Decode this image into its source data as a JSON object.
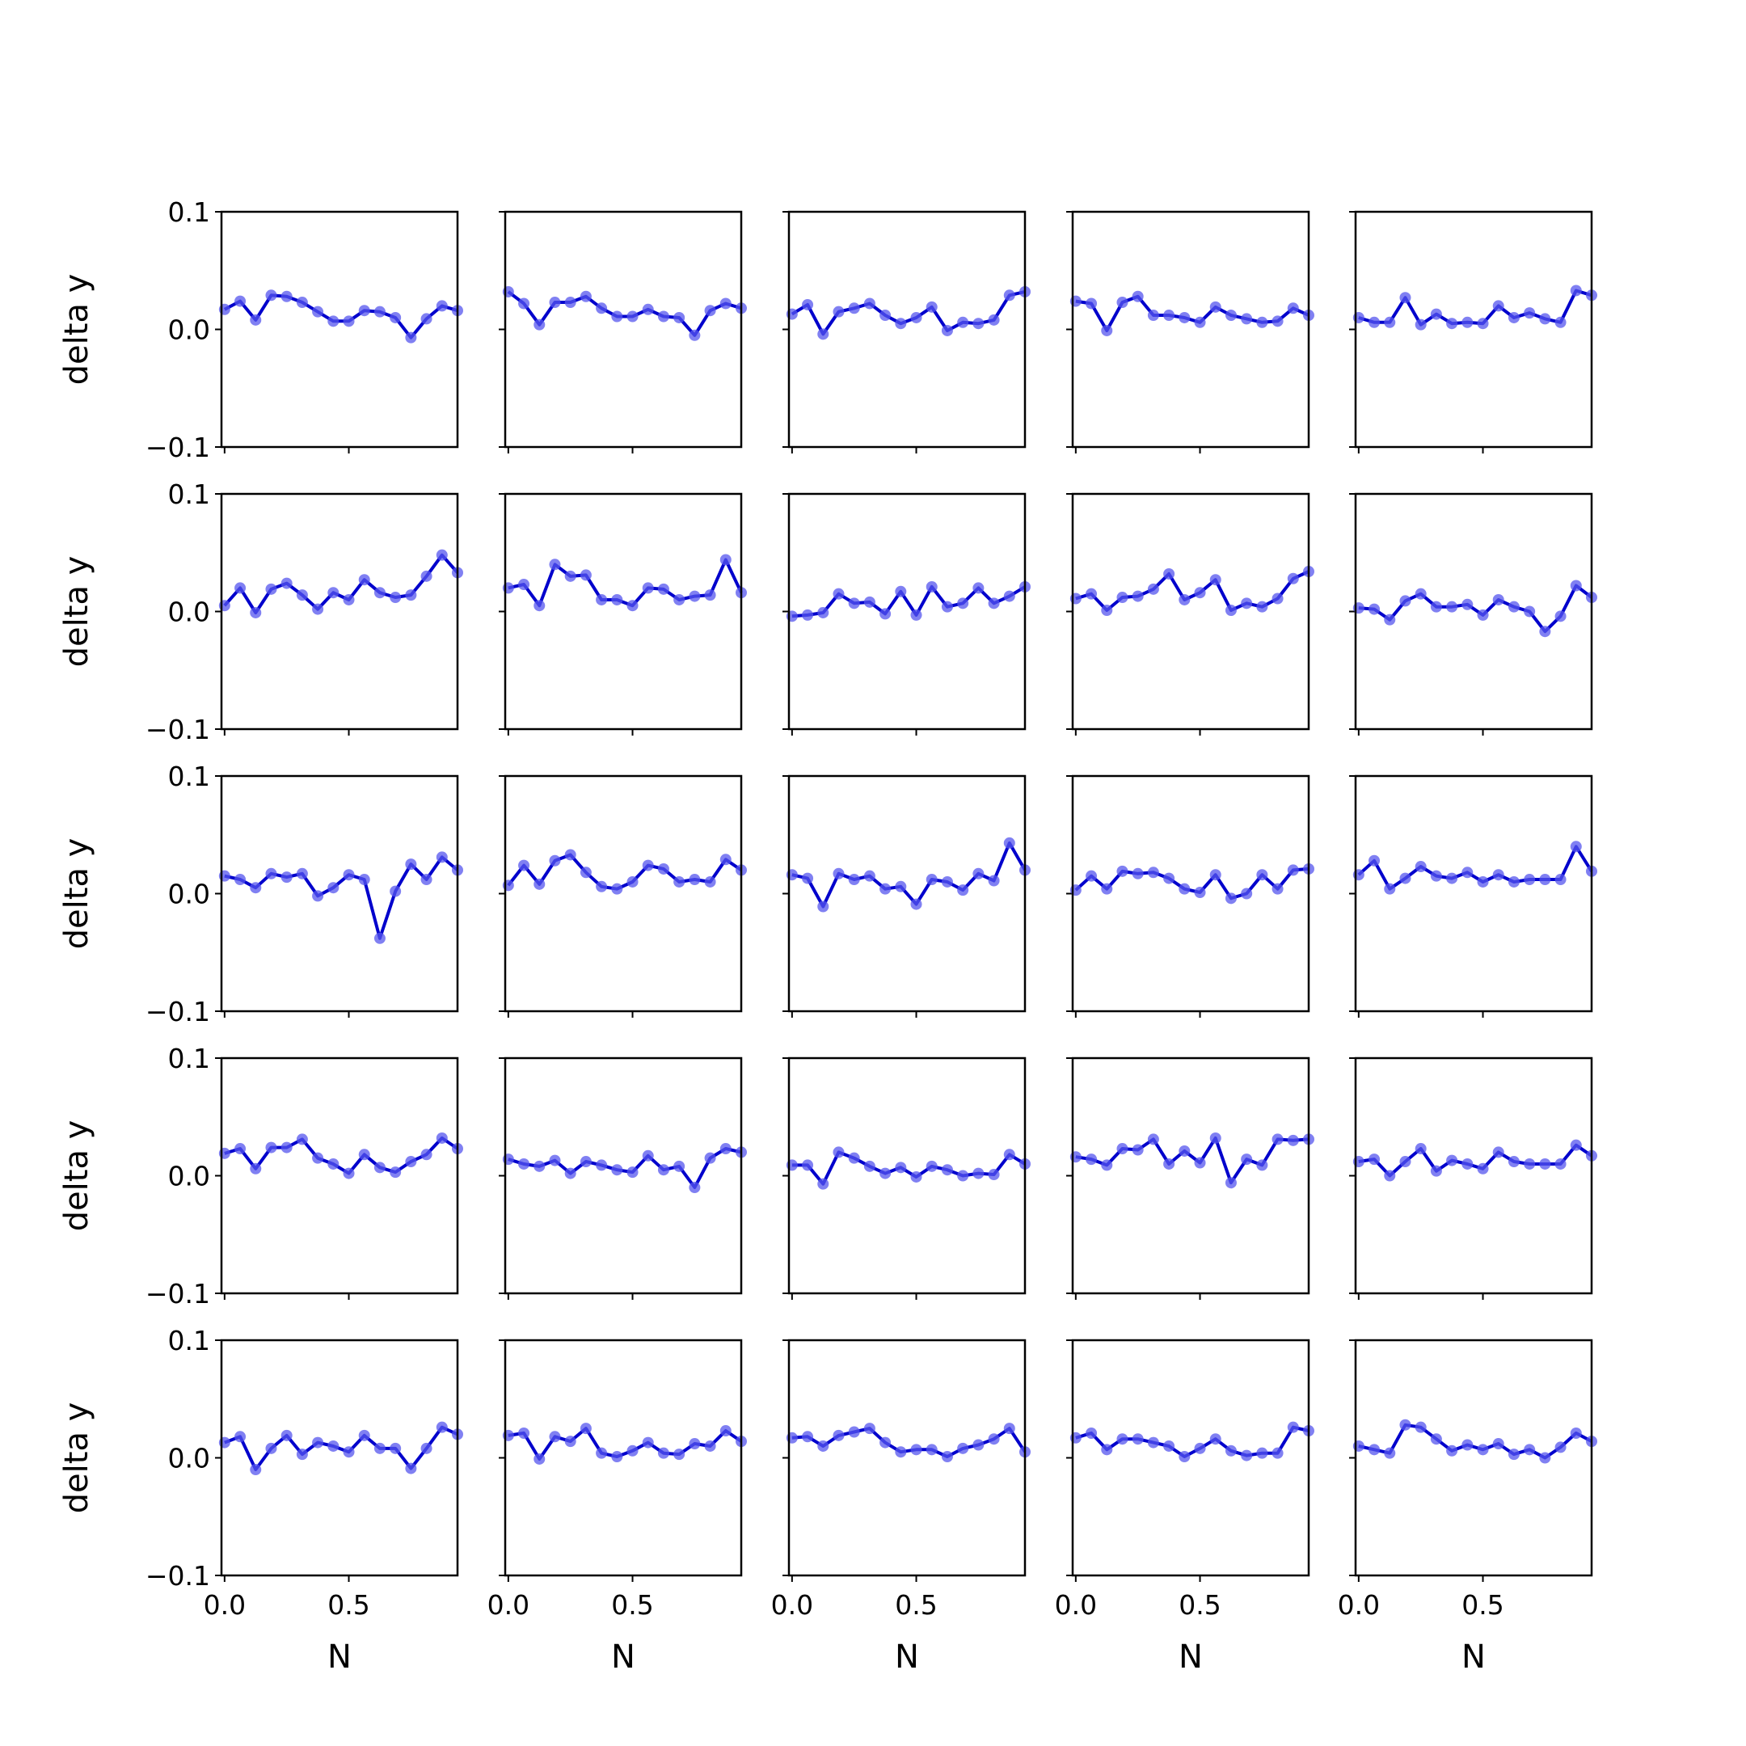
{
  "figure": {
    "line_color": "#0000cc",
    "marker_color": "#5555ee",
    "axes_color": "#000000",
    "background": "#ffffff"
  },
  "chart_data": {
    "type": "line",
    "layout": "5x5 grid of small multiples, shared x and y axes",
    "rows": 5,
    "cols": 5,
    "xlabel": "N",
    "ylabel": "delta y",
    "xlim": [
      -0.0125,
      0.9375
    ],
    "ylim": [
      -0.1,
      0.1
    ],
    "xticks": [
      0.0,
      0.5
    ],
    "xtick_labels": [
      "0.0",
      "0.5"
    ],
    "yticks": [
      0.1,
      0.0,
      -0.1
    ],
    "ytick_labels": [
      "0.1",
      "0.0",
      "−0.1"
    ],
    "grid": false,
    "x": [
      0.0,
      0.0625,
      0.125,
      0.1875,
      0.25,
      0.3125,
      0.375,
      0.4375,
      0.5,
      0.5625,
      0.625,
      0.6875,
      0.75,
      0.8125,
      0.875,
      0.9375
    ],
    "panels": [
      {
        "row": 0,
        "col": 0,
        "y": [
          0.017,
          0.024,
          0.008,
          0.029,
          0.028,
          0.023,
          0.015,
          0.007,
          0.007,
          0.016,
          0.015,
          0.01,
          -0.007,
          0.009,
          0.02,
          0.016
        ]
      },
      {
        "row": 0,
        "col": 1,
        "y": [
          0.032,
          0.022,
          0.004,
          0.023,
          0.023,
          0.028,
          0.018,
          0.011,
          0.011,
          0.017,
          0.011,
          0.01,
          -0.005,
          0.016,
          0.022,
          0.018
        ]
      },
      {
        "row": 0,
        "col": 2,
        "y": [
          0.013,
          0.021,
          -0.004,
          0.015,
          0.018,
          0.022,
          0.012,
          0.005,
          0.01,
          0.019,
          -0.001,
          0.006,
          0.005,
          0.008,
          0.029,
          0.032
        ]
      },
      {
        "row": 0,
        "col": 3,
        "y": [
          0.024,
          0.022,
          -0.001,
          0.023,
          0.028,
          0.012,
          0.012,
          0.01,
          0.006,
          0.019,
          0.012,
          0.009,
          0.006,
          0.007,
          0.018,
          0.012
        ]
      },
      {
        "row": 0,
        "col": 4,
        "y": [
          0.01,
          0.006,
          0.006,
          0.027,
          0.004,
          0.013,
          0.005,
          0.006,
          0.005,
          0.02,
          0.01,
          0.014,
          0.009,
          0.006,
          0.033,
          0.029
        ]
      },
      {
        "row": 1,
        "col": 0,
        "y": [
          0.005,
          0.02,
          -0.001,
          0.019,
          0.024,
          0.014,
          0.002,
          0.016,
          0.01,
          0.027,
          0.016,
          0.012,
          0.014,
          0.03,
          0.048,
          0.033
        ]
      },
      {
        "row": 1,
        "col": 1,
        "y": [
          0.02,
          0.023,
          0.005,
          0.04,
          0.03,
          0.031,
          0.01,
          0.01,
          0.005,
          0.02,
          0.019,
          0.01,
          0.013,
          0.014,
          0.044,
          0.016
        ]
      },
      {
        "row": 1,
        "col": 2,
        "y": [
          -0.004,
          -0.003,
          -0.001,
          0.015,
          0.007,
          0.008,
          -0.002,
          0.017,
          -0.003,
          0.021,
          0.004,
          0.007,
          0.02,
          0.007,
          0.013,
          0.021
        ]
      },
      {
        "row": 1,
        "col": 3,
        "y": [
          0.011,
          0.015,
          0.001,
          0.012,
          0.013,
          0.019,
          0.032,
          0.01,
          0.016,
          0.027,
          0.001,
          0.007,
          0.004,
          0.011,
          0.028,
          0.034
        ]
      },
      {
        "row": 1,
        "col": 4,
        "y": [
          0.003,
          0.002,
          -0.007,
          0.009,
          0.015,
          0.004,
          0.004,
          0.006,
          -0.003,
          0.01,
          0.004,
          0.0,
          -0.017,
          -0.004,
          0.022,
          0.012
        ]
      },
      {
        "row": 2,
        "col": 0,
        "y": [
          0.015,
          0.012,
          0.005,
          0.017,
          0.014,
          0.017,
          -0.002,
          0.005,
          0.016,
          0.012,
          -0.038,
          0.002,
          0.025,
          0.012,
          0.031,
          0.02
        ]
      },
      {
        "row": 2,
        "col": 1,
        "y": [
          0.007,
          0.024,
          0.008,
          0.028,
          0.033,
          0.018,
          0.006,
          0.004,
          0.01,
          0.024,
          0.021,
          0.01,
          0.012,
          0.01,
          0.029,
          0.02
        ]
      },
      {
        "row": 2,
        "col": 2,
        "y": [
          0.016,
          0.013,
          -0.011,
          0.017,
          0.012,
          0.015,
          0.004,
          0.006,
          -0.009,
          0.012,
          0.01,
          0.003,
          0.017,
          0.011,
          0.043,
          0.02
        ]
      },
      {
        "row": 2,
        "col": 3,
        "y": [
          0.003,
          0.015,
          0.004,
          0.019,
          0.017,
          0.018,
          0.013,
          0.004,
          0.001,
          0.016,
          -0.004,
          0.0,
          0.016,
          0.004,
          0.02,
          0.021
        ]
      },
      {
        "row": 2,
        "col": 4,
        "y": [
          0.016,
          0.028,
          0.004,
          0.013,
          0.023,
          0.015,
          0.013,
          0.018,
          0.01,
          0.016,
          0.01,
          0.012,
          0.012,
          0.012,
          0.04,
          0.019
        ]
      },
      {
        "row": 3,
        "col": 0,
        "y": [
          0.019,
          0.023,
          0.006,
          0.024,
          0.024,
          0.031,
          0.015,
          0.01,
          0.002,
          0.018,
          0.007,
          0.003,
          0.012,
          0.018,
          0.032,
          0.023
        ]
      },
      {
        "row": 3,
        "col": 1,
        "y": [
          0.014,
          0.01,
          0.008,
          0.013,
          0.002,
          0.012,
          0.009,
          0.005,
          0.003,
          0.017,
          0.005,
          0.008,
          -0.01,
          0.015,
          0.023,
          0.02
        ]
      },
      {
        "row": 3,
        "col": 2,
        "y": [
          0.009,
          0.009,
          -0.007,
          0.02,
          0.015,
          0.008,
          0.002,
          0.007,
          -0.001,
          0.008,
          0.005,
          0.0,
          0.002,
          0.001,
          0.018,
          0.01
        ]
      },
      {
        "row": 3,
        "col": 3,
        "y": [
          0.016,
          0.014,
          0.009,
          0.023,
          0.022,
          0.031,
          0.01,
          0.021,
          0.011,
          0.032,
          -0.006,
          0.014,
          0.009,
          0.031,
          0.03,
          0.031
        ]
      },
      {
        "row": 3,
        "col": 4,
        "y": [
          0.012,
          0.014,
          0.0,
          0.012,
          0.023,
          0.004,
          0.013,
          0.01,
          0.006,
          0.02,
          0.012,
          0.01,
          0.01,
          0.01,
          0.026,
          0.017
        ]
      },
      {
        "row": 4,
        "col": 0,
        "y": [
          0.013,
          0.018,
          -0.01,
          0.008,
          0.019,
          0.003,
          0.013,
          0.01,
          0.005,
          0.019,
          0.008,
          0.008,
          -0.009,
          0.008,
          0.026,
          0.02
        ]
      },
      {
        "row": 4,
        "col": 1,
        "y": [
          0.019,
          0.021,
          -0.001,
          0.018,
          0.014,
          0.025,
          0.004,
          0.001,
          0.006,
          0.013,
          0.004,
          0.003,
          0.012,
          0.01,
          0.023,
          0.014
        ]
      },
      {
        "row": 4,
        "col": 2,
        "y": [
          0.017,
          0.018,
          0.01,
          0.019,
          0.022,
          0.025,
          0.013,
          0.005,
          0.007,
          0.007,
          0.001,
          0.008,
          0.011,
          0.016,
          0.025,
          0.005
        ]
      },
      {
        "row": 4,
        "col": 3,
        "y": [
          0.017,
          0.021,
          0.007,
          0.016,
          0.016,
          0.013,
          0.01,
          0.001,
          0.008,
          0.016,
          0.006,
          0.002,
          0.004,
          0.004,
          0.026,
          0.023
        ]
      },
      {
        "row": 4,
        "col": 4,
        "y": [
          0.01,
          0.007,
          0.004,
          0.028,
          0.026,
          0.016,
          0.006,
          0.011,
          0.007,
          0.012,
          0.003,
          0.007,
          0.0,
          0.009,
          0.021,
          0.014
        ]
      }
    ]
  }
}
